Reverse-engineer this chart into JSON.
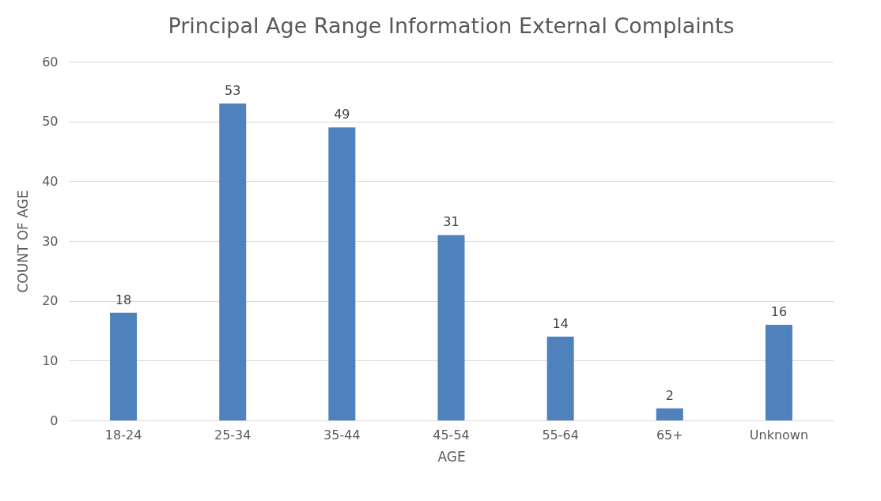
{
  "chart_data": {
    "type": "bar",
    "title": "Principal Age Range Information External Complaints",
    "xlabel": "AGE",
    "ylabel": "COUNT OF AGE",
    "categories": [
      "18-24",
      "25-34",
      "35-44",
      "45-54",
      "55-64",
      "65+",
      "Unknown"
    ],
    "values": [
      18,
      53,
      49,
      31,
      14,
      2,
      16
    ],
    "color": "#4f81bd",
    "ylim": [
      0,
      60
    ],
    "yticks": [
      0,
      10,
      20,
      30,
      40,
      50,
      60
    ],
    "grid": "y",
    "data_labels": true
  }
}
